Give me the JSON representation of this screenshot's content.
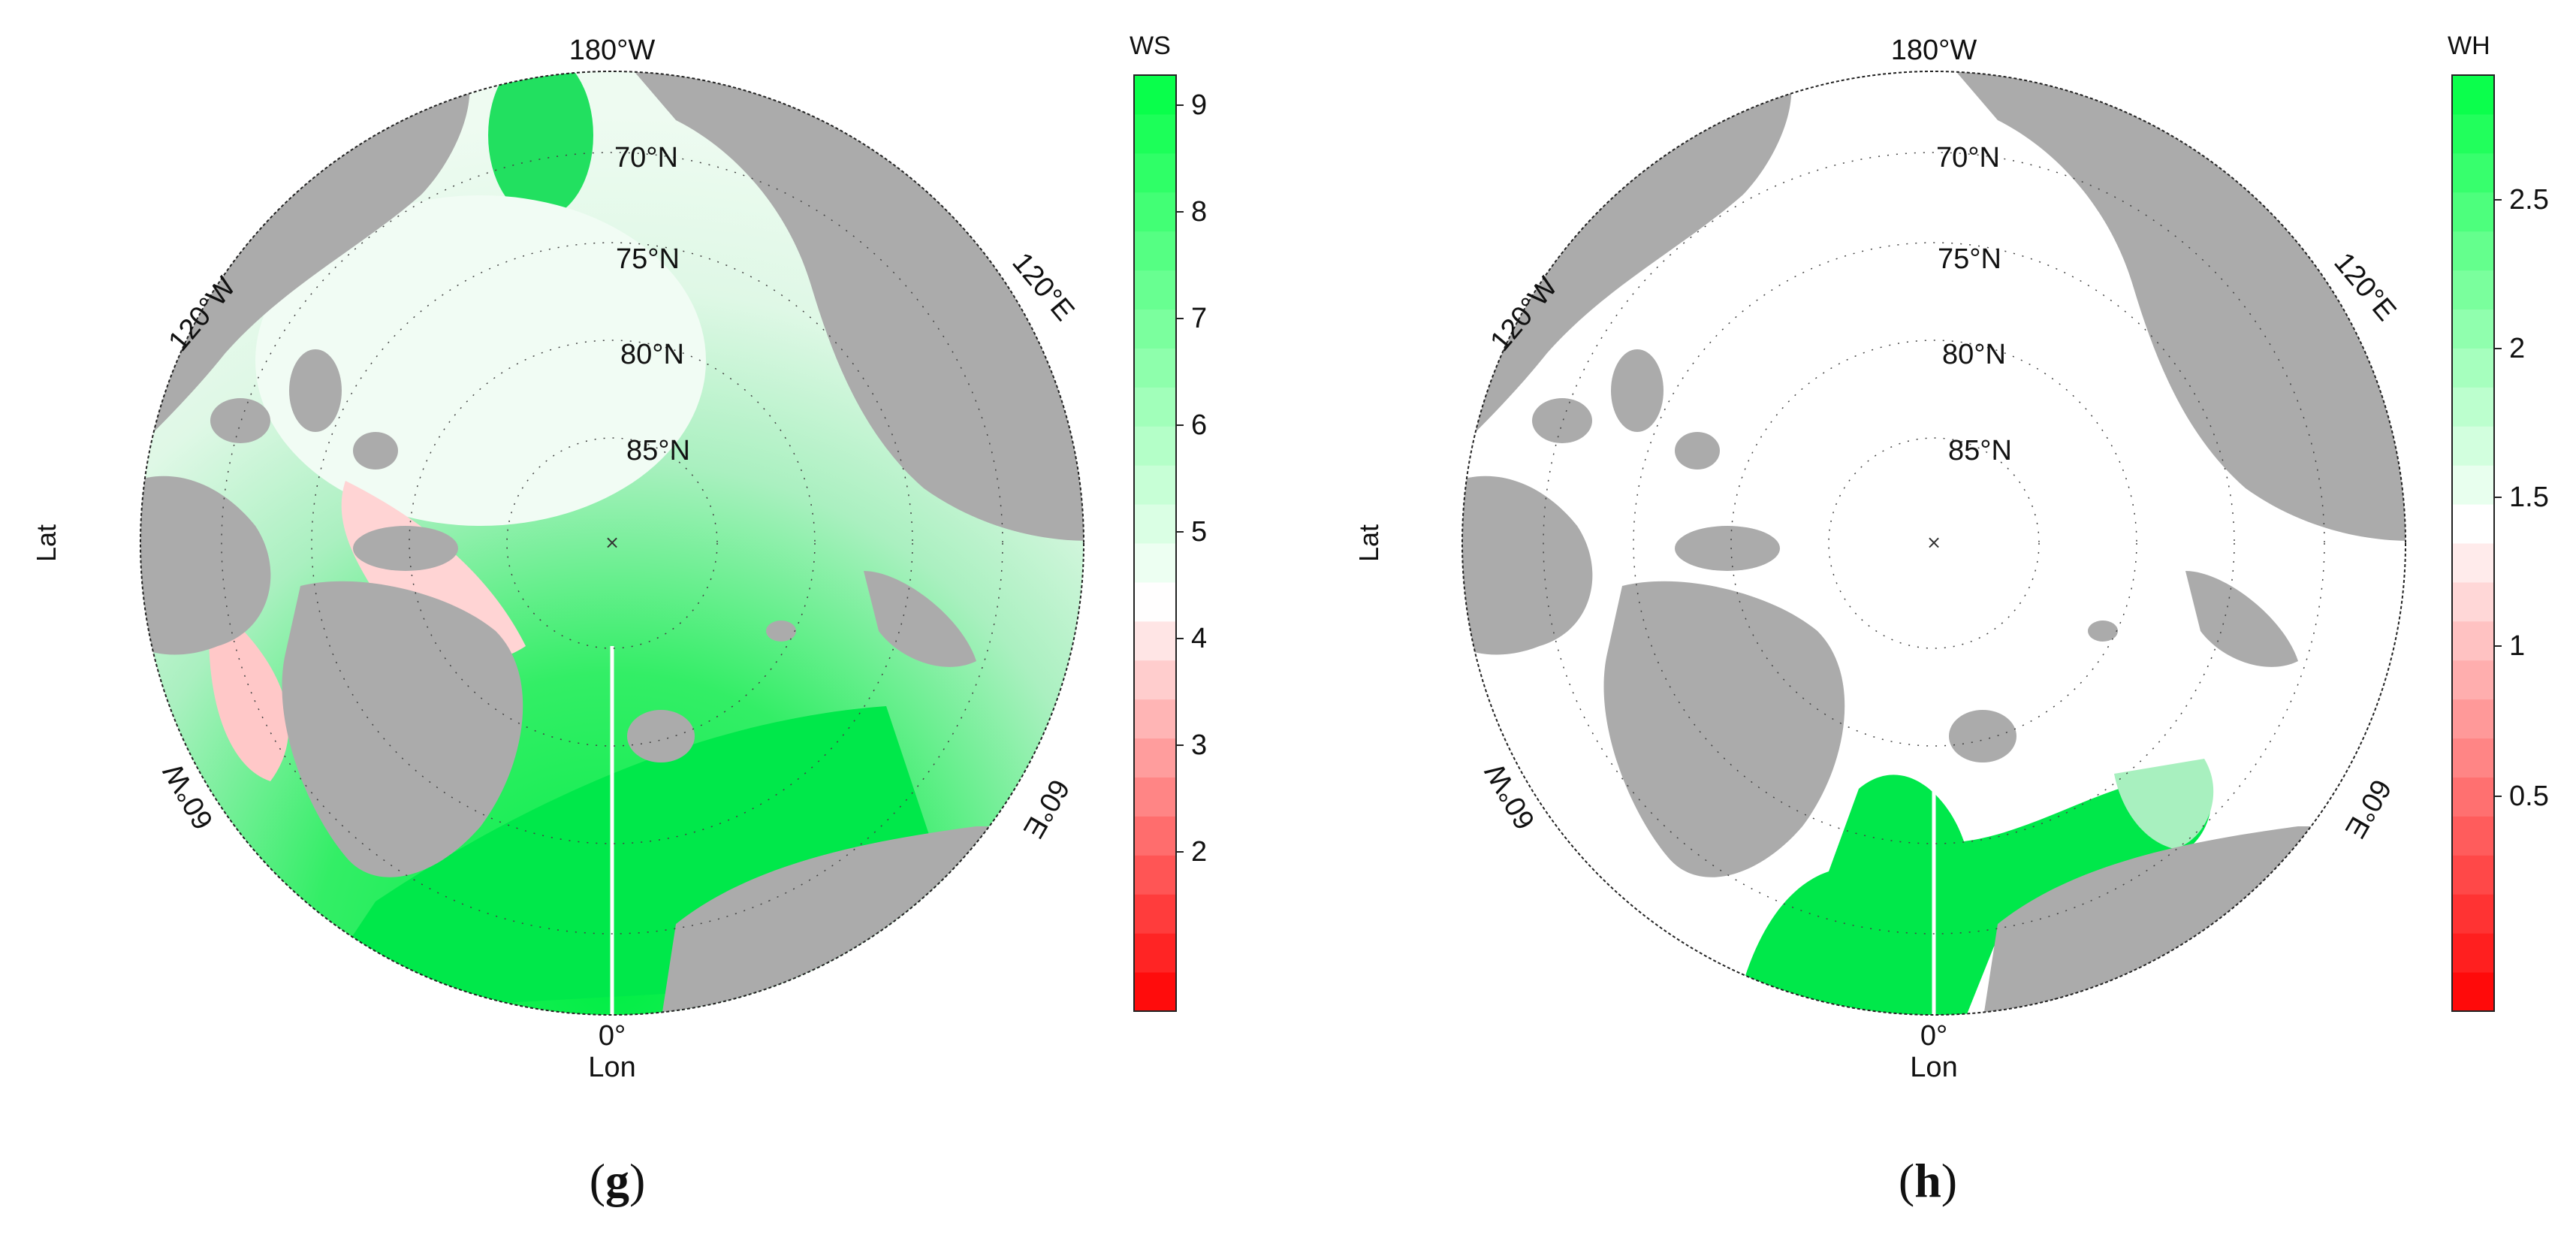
{
  "panels": [
    {
      "id": "g",
      "caption_open": "(",
      "caption_letter": "g",
      "caption_close": ")",
      "colorbar": {
        "title": "WS",
        "ticks": [
          "9",
          "8",
          "7",
          "6",
          "5",
          "4",
          "3",
          "2"
        ],
        "low_color": "#ff0000",
        "mid_color": "#ffffff",
        "high_color": "#00ff44",
        "steps": 24,
        "mid_fraction": 0.44
      },
      "map": {
        "top_label": "180°W",
        "bottom_label_deg": "0°",
        "bottom_label_axis": "Lon",
        "left_axis": "Lat",
        "label_120w": "120°W",
        "label_120e": "120°E",
        "label_60w": "60°W",
        "label_60e": "60°E",
        "lat_70": "70°N",
        "lat_75": "75°N",
        "lat_80": "80°N",
        "lat_85": "85°N"
      }
    },
    {
      "id": "h",
      "caption_open": "(",
      "caption_letter": "h",
      "caption_close": ")",
      "colorbar": {
        "title": "WH",
        "ticks": [
          "2.5",
          "2",
          "1.5",
          "1",
          "0.5"
        ],
        "low_color": "#ff0000",
        "mid_color": "#ffffff",
        "high_color": "#00ff44",
        "steps": 24,
        "mid_fraction": 0.52
      },
      "map": {
        "top_label": "180°W",
        "bottom_label_deg": "0°",
        "bottom_label_axis": "Lon",
        "left_axis": "Lat",
        "label_120w": "120°W",
        "label_120e": "120°E",
        "label_60w": "60°W",
        "label_60e": "60°E",
        "lat_70": "70°N",
        "lat_75": "75°N",
        "lat_80": "80°N",
        "lat_85": "85°N"
      }
    }
  ]
}
